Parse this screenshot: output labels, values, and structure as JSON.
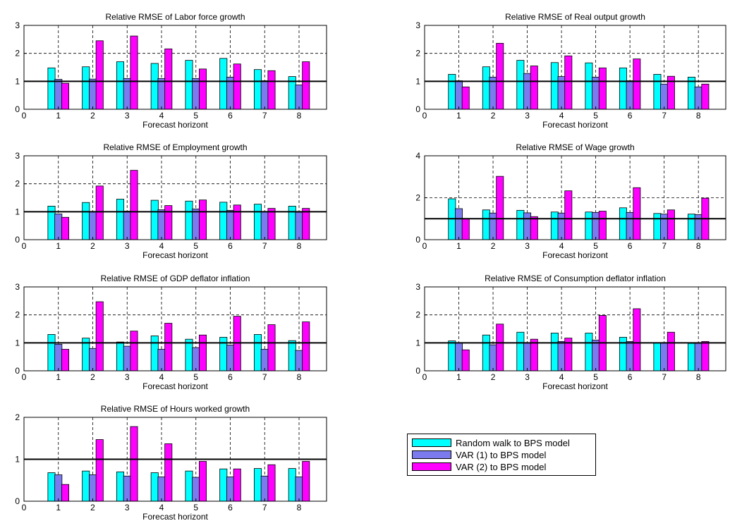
{
  "legend": {
    "items": [
      {
        "label": "Random walk to BPS model",
        "color": "#00ffff"
      },
      {
        "label": "VAR (1) to BPS model",
        "color": "#7b7bef"
      },
      {
        "label": "VAR (2) to BPS model",
        "color": "#ff00ff"
      }
    ]
  },
  "chart_data": [
    {
      "type": "bar",
      "title": "Relative RMSE of Labor force growth",
      "xlabel": "Forecast horizont",
      "ylabel": "",
      "categories": [
        "1",
        "2",
        "3",
        "4",
        "5",
        "6",
        "7",
        "8"
      ],
      "x_ticks": [
        "0",
        "1",
        "2",
        "3",
        "4",
        "5",
        "6",
        "7",
        "8"
      ],
      "y_ticks": [
        "0",
        "1",
        "2",
        "3"
      ],
      "xlim": [
        0,
        8.8
      ],
      "ylim": [
        0,
        3
      ],
      "reference_line": 1,
      "grid": "dashed",
      "series": [
        {
          "name": "Random walk to BPS model",
          "values": [
            1.48,
            1.52,
            1.7,
            1.64,
            1.75,
            1.82,
            1.42,
            1.17
          ]
        },
        {
          "name": "VAR (1) to BPS model",
          "values": [
            1.07,
            1.08,
            1.1,
            1.1,
            1.1,
            1.15,
            1.02,
            0.87
          ]
        },
        {
          "name": "VAR (2) to BPS model",
          "values": [
            0.93,
            2.45,
            2.62,
            2.16,
            1.44,
            1.62,
            1.38,
            1.7
          ]
        }
      ]
    },
    {
      "type": "bar",
      "title": "Relative RMSE of  Real output growth",
      "xlabel": "Forecast horizont",
      "ylabel": "",
      "categories": [
        "1",
        "2",
        "3",
        "4",
        "5",
        "6",
        "7",
        "8"
      ],
      "x_ticks": [
        "0",
        "1",
        "2",
        "3",
        "4",
        "5",
        "6",
        "7",
        "8"
      ],
      "y_ticks": [
        "0",
        "1",
        "2",
        "3"
      ],
      "xlim": [
        0,
        8.8
      ],
      "ylim": [
        0,
        3
      ],
      "reference_line": 1,
      "grid": "dashed",
      "series": [
        {
          "name": "Random walk to BPS model",
          "values": [
            1.25,
            1.52,
            1.75,
            1.67,
            1.66,
            1.48,
            1.25,
            1.15
          ]
        },
        {
          "name": "VAR (1) to BPS model",
          "values": [
            1.02,
            1.15,
            1.28,
            1.17,
            1.15,
            1.02,
            0.9,
            0.8
          ]
        },
        {
          "name": "VAR (2) to BPS model",
          "values": [
            0.8,
            2.36,
            1.55,
            1.91,
            1.48,
            1.8,
            1.18,
            0.9
          ]
        }
      ]
    },
    {
      "type": "bar",
      "title": "Relative RMSE of Employment growth",
      "xlabel": "Forecast horizont",
      "ylabel": "",
      "categories": [
        "1",
        "2",
        "3",
        "4",
        "5",
        "6",
        "7",
        "8"
      ],
      "x_ticks": [
        "0",
        "1",
        "2",
        "3",
        "4",
        "5",
        "6",
        "7",
        "8"
      ],
      "y_ticks": [
        "0",
        "1",
        "2",
        "3"
      ],
      "xlim": [
        0,
        8.8
      ],
      "ylim": [
        0,
        3
      ],
      "reference_line": 1,
      "grid": "dashed",
      "series": [
        {
          "name": "Random walk to BPS model",
          "values": [
            1.2,
            1.33,
            1.45,
            1.41,
            1.38,
            1.34,
            1.27,
            1.2
          ]
        },
        {
          "name": "VAR (1) to BPS model",
          "values": [
            0.92,
            1.01,
            1.02,
            1.07,
            1.1,
            1.05,
            1.0,
            0.98
          ]
        },
        {
          "name": "VAR (2) to BPS model",
          "values": [
            0.8,
            1.92,
            2.48,
            1.22,
            1.42,
            1.24,
            1.12,
            1.12
          ]
        }
      ]
    },
    {
      "type": "bar",
      "title": "Relative RMSE of Wage growth",
      "xlabel": "Forecast horizont",
      "ylabel": "",
      "categories": [
        "1",
        "2",
        "3",
        "4",
        "5",
        "6",
        "7",
        "8"
      ],
      "x_ticks": [
        "0",
        "1",
        "2",
        "3",
        "4",
        "5",
        "6",
        "7",
        "8"
      ],
      "y_ticks": [
        "0",
        "2",
        "4"
      ],
      "xlim": [
        0,
        8.8
      ],
      "ylim": [
        0,
        4
      ],
      "reference_line": 1,
      "grid": "dashed",
      "series": [
        {
          "name": "Random walk to BPS model",
          "values": [
            1.95,
            1.42,
            1.4,
            1.32,
            1.32,
            1.52,
            1.25,
            1.22
          ]
        },
        {
          "name": "VAR (1) to BPS model",
          "values": [
            1.48,
            1.27,
            1.28,
            1.27,
            1.3,
            1.3,
            1.22,
            1.2
          ]
        },
        {
          "name": "VAR (2) to BPS model",
          "values": [
            1.0,
            3.02,
            1.1,
            2.33,
            1.36,
            2.48,
            1.42,
            1.98
          ]
        }
      ]
    },
    {
      "type": "bar",
      "title": "Relative RMSE of GDP deflator inflation",
      "xlabel": "Forecast horizont",
      "ylabel": "",
      "categories": [
        "1",
        "2",
        "3",
        "4",
        "5",
        "6",
        "7",
        "8"
      ],
      "x_ticks": [
        "0",
        "1",
        "2",
        "3",
        "4",
        "5",
        "6",
        "7",
        "8"
      ],
      "y_ticks": [
        "0",
        "1",
        "2",
        "3"
      ],
      "xlim": [
        0,
        8.8
      ],
      "ylim": [
        0,
        3
      ],
      "reference_line": 1,
      "grid": "dashed",
      "series": [
        {
          "name": "Random walk to BPS model",
          "values": [
            1.3,
            1.17,
            1.03,
            1.25,
            1.13,
            1.2,
            1.3,
            1.08
          ]
        },
        {
          "name": "VAR (1) to BPS model",
          "values": [
            0.95,
            0.8,
            0.88,
            0.77,
            0.83,
            0.92,
            0.77,
            0.73
          ]
        },
        {
          "name": "VAR (2) to BPS model",
          "values": [
            0.77,
            2.47,
            1.42,
            1.7,
            1.28,
            1.95,
            1.65,
            1.75
          ]
        }
      ]
    },
    {
      "type": "bar",
      "title": "Relative RMSE of Consumption deflator inflation",
      "xlabel": "Forecast horizont",
      "ylabel": "",
      "categories": [
        "1",
        "2",
        "3",
        "4",
        "5",
        "6",
        "7",
        "8"
      ],
      "x_ticks": [
        "0",
        "1",
        "2",
        "3",
        "4",
        "5",
        "6",
        "7",
        "8"
      ],
      "y_ticks": [
        "0",
        "1",
        "2",
        "3"
      ],
      "xlim": [
        0,
        8.8
      ],
      "ylim": [
        0,
        3
      ],
      "reference_line": 1,
      "grid": "dashed",
      "series": [
        {
          "name": "Random walk to BPS model",
          "values": [
            1.07,
            1.28,
            1.38,
            1.35,
            1.35,
            1.2,
            1.0,
            0.98
          ]
        },
        {
          "name": "VAR (1) to BPS model",
          "values": [
            1.0,
            0.93,
            1.0,
            1.05,
            1.1,
            1.05,
            1.0,
            0.98
          ]
        },
        {
          "name": "VAR (2) to BPS model",
          "values": [
            0.75,
            1.67,
            1.13,
            1.17,
            1.98,
            2.22,
            1.38,
            1.05
          ]
        }
      ]
    },
    {
      "type": "bar",
      "title": "Relative RMSE of Hours worked growth",
      "xlabel": "Forecast horizont",
      "ylabel": "",
      "categories": [
        "1",
        "2",
        "3",
        "4",
        "5",
        "6",
        "7",
        "8"
      ],
      "x_ticks": [
        "0",
        "1",
        "2",
        "3",
        "4",
        "5",
        "6",
        "7",
        "8"
      ],
      "y_ticks": [
        "0",
        "1",
        "2"
      ],
      "xlim": [
        0,
        8.8
      ],
      "ylim": [
        0,
        2
      ],
      "reference_line": 1,
      "grid": "dashed",
      "series": [
        {
          "name": "Random walk to BPS model",
          "values": [
            0.68,
            0.72,
            0.7,
            0.68,
            0.72,
            0.77,
            0.78,
            0.78
          ]
        },
        {
          "name": "VAR (1) to BPS model",
          "values": [
            0.63,
            0.63,
            0.6,
            0.58,
            0.57,
            0.58,
            0.6,
            0.58
          ]
        },
        {
          "name": "VAR (2) to BPS model",
          "values": [
            0.4,
            1.47,
            1.78,
            1.37,
            0.95,
            0.77,
            0.87,
            0.95
          ]
        }
      ]
    }
  ]
}
